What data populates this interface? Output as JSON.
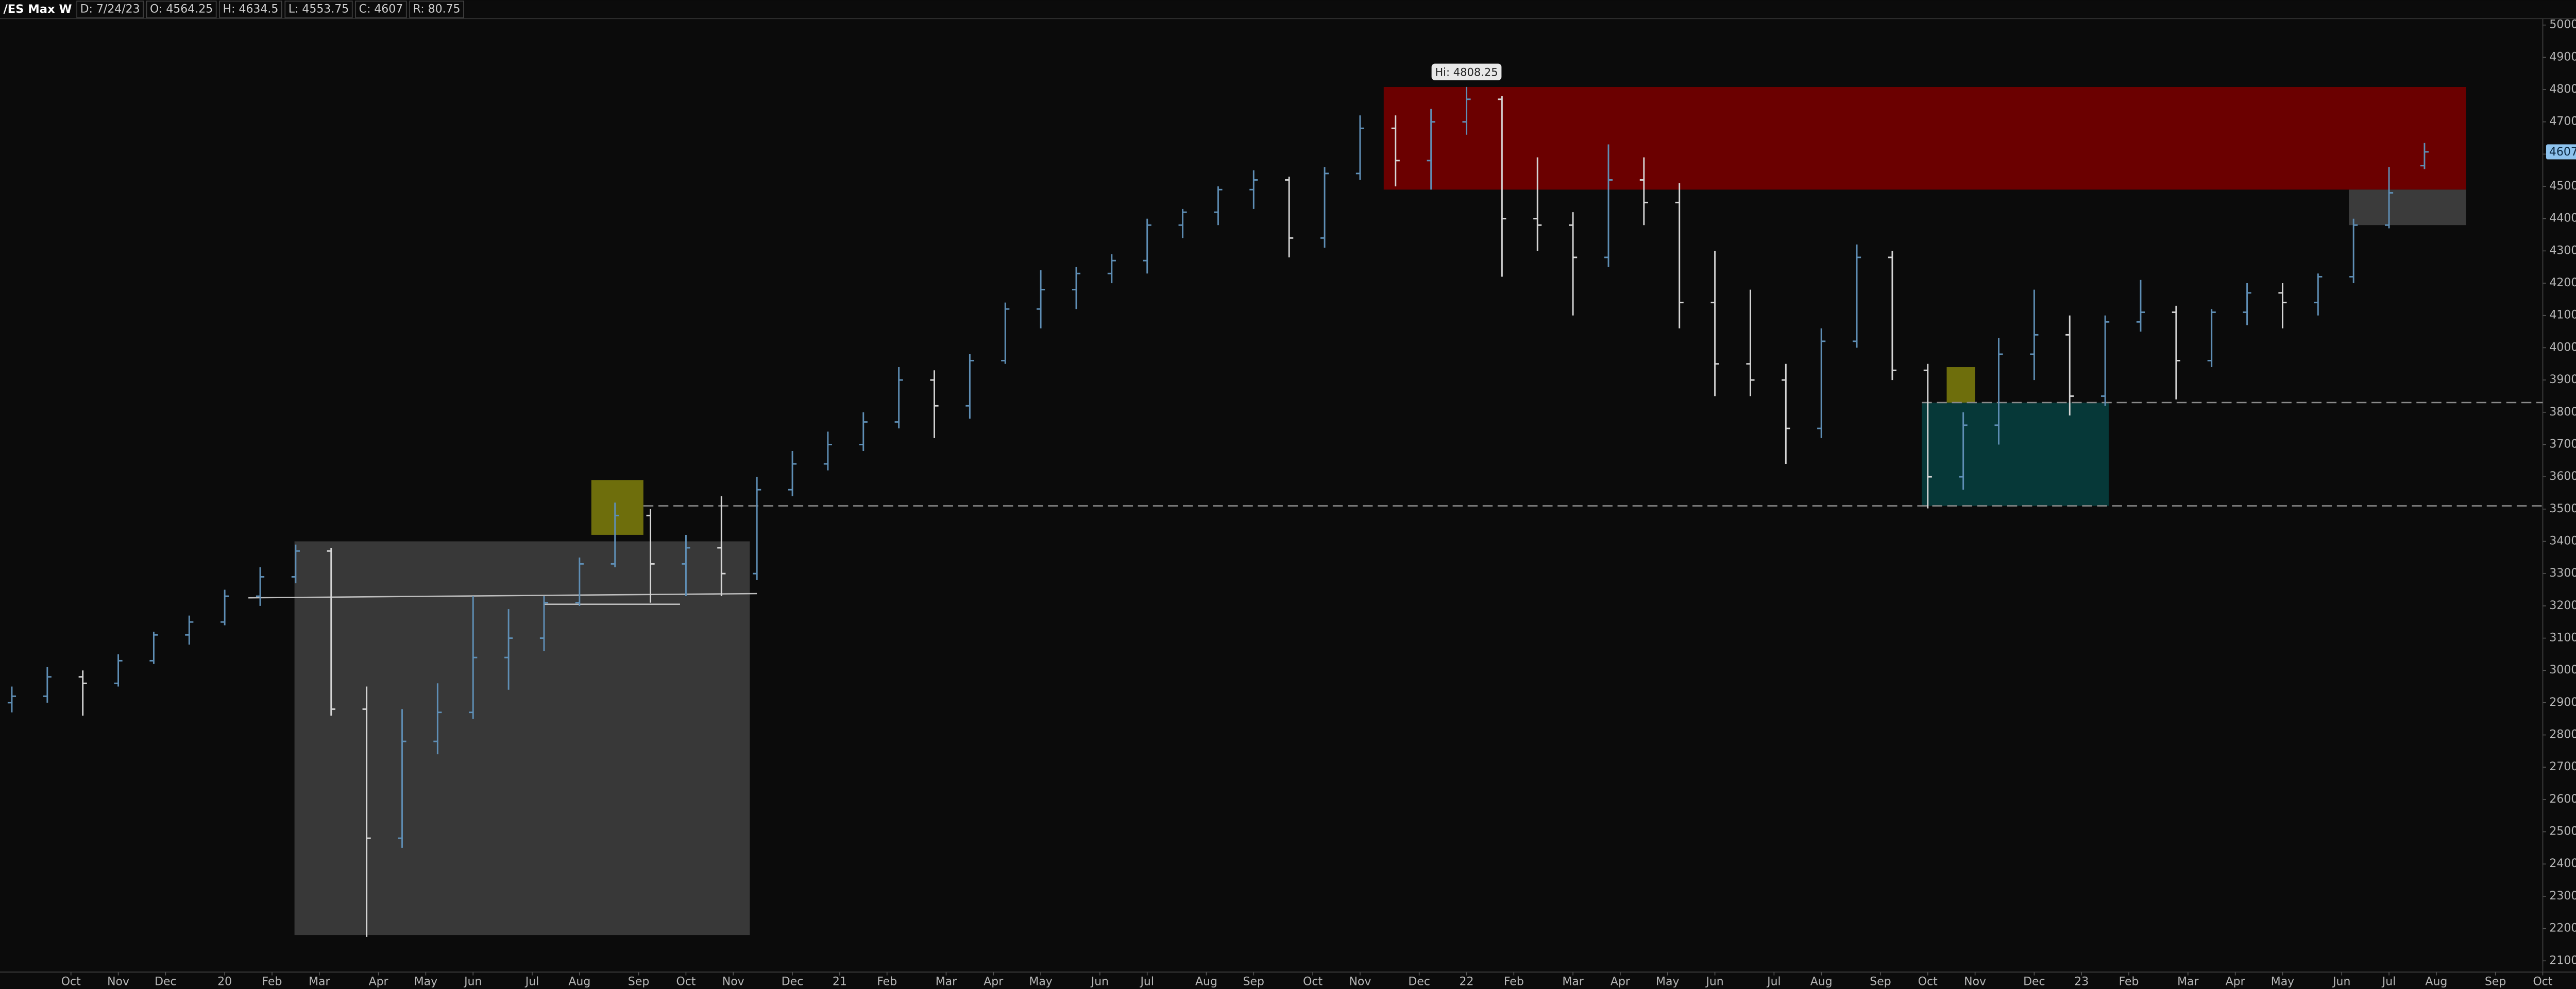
{
  "chart_data": {
    "type": "ohlc",
    "title": "/ES Max W",
    "header_fields": [
      "D: 7/24/23",
      "O: 4564.25",
      "H: 4634.5",
      "L: 4553.75",
      "C: 4607",
      "R: 80.75"
    ],
    "hi_label": "Hi: 4808.25",
    "last_price": 4607,
    "up_color": "#5f8fb6",
    "down_color": "#d6d6d6",
    "xlim": [
      0,
      215
    ],
    "ylim": [
      2060,
      5020
    ],
    "xticks": [
      {
        "value": 6,
        "label": "Oct"
      },
      {
        "value": 10,
        "label": "Nov"
      },
      {
        "value": 14,
        "label": "Dec"
      },
      {
        "value": 19,
        "label": "20"
      },
      {
        "value": 23,
        "label": "Feb"
      },
      {
        "value": 27,
        "label": "Mar"
      },
      {
        "value": 32,
        "label": "Apr"
      },
      {
        "value": 36,
        "label": "May"
      },
      {
        "value": 40,
        "label": "Jun"
      },
      {
        "value": 45,
        "label": "Jul"
      },
      {
        "value": 49,
        "label": "Aug"
      },
      {
        "value": 54,
        "label": "Sep"
      },
      {
        "value": 58,
        "label": "Oct"
      },
      {
        "value": 62,
        "label": "Nov"
      },
      {
        "value": 67,
        "label": "Dec"
      },
      {
        "value": 71,
        "label": "21"
      },
      {
        "value": 75,
        "label": "Feb"
      },
      {
        "value": 80,
        "label": "Mar"
      },
      {
        "value": 84,
        "label": "Apr"
      },
      {
        "value": 88,
        "label": "May"
      },
      {
        "value": 93,
        "label": "Jun"
      },
      {
        "value": 97,
        "label": "Jul"
      },
      {
        "value": 102,
        "label": "Aug"
      },
      {
        "value": 106,
        "label": "Sep"
      },
      {
        "value": 111,
        "label": "Oct"
      },
      {
        "value": 115,
        "label": "Nov"
      },
      {
        "value": 120,
        "label": "Dec"
      },
      {
        "value": 124,
        "label": "22"
      },
      {
        "value": 128,
        "label": "Feb"
      },
      {
        "value": 133,
        "label": "Mar"
      },
      {
        "value": 137,
        "label": "Apr"
      },
      {
        "value": 141,
        "label": "May"
      },
      {
        "value": 145,
        "label": "Jun"
      },
      {
        "value": 150,
        "label": "Jul"
      },
      {
        "value": 154,
        "label": "Aug"
      },
      {
        "value": 159,
        "label": "Sep"
      },
      {
        "value": 163,
        "label": "Oct"
      },
      {
        "value": 167,
        "label": "Nov"
      },
      {
        "value": 172,
        "label": "Dec"
      },
      {
        "value": 176,
        "label": "23"
      },
      {
        "value": 180,
        "label": "Feb"
      },
      {
        "value": 185,
        "label": "Mar"
      },
      {
        "value": 189,
        "label": "Apr"
      },
      {
        "value": 193,
        "label": "May"
      },
      {
        "value": 198,
        "label": "Jun"
      },
      {
        "value": 202,
        "label": "Jul"
      },
      {
        "value": 206,
        "label": "Aug"
      },
      {
        "value": 211,
        "label": "Sep"
      },
      {
        "value": 215,
        "label": "Oct"
      }
    ],
    "yticks": [
      2100,
      2200,
      2300,
      2400,
      2500,
      2600,
      2700,
      2800,
      2900,
      3000,
      3100,
      3200,
      3300,
      3400,
      3500,
      3600,
      3700,
      3800,
      3900,
      4000,
      4100,
      4200,
      4300,
      4400,
      4500,
      4600,
      4700,
      4800,
      4900,
      5000
    ],
    "x": [
      1,
      4,
      7,
      10,
      13,
      16,
      19,
      22,
      25,
      28,
      31,
      34,
      37,
      40,
      43,
      46,
      49,
      52,
      55,
      58,
      61,
      64,
      67,
      70,
      73,
      76,
      79,
      82,
      85,
      88,
      91,
      94,
      97,
      100,
      103,
      106,
      109,
      112,
      115,
      118,
      121,
      124,
      127,
      130,
      133,
      136,
      139,
      142,
      145,
      148,
      151,
      154,
      157,
      160,
      163,
      166,
      169,
      172,
      175,
      178,
      181,
      184,
      187,
      190,
      193,
      196,
      199,
      202,
      205
    ],
    "open": [
      2900,
      2920,
      2980,
      2960,
      3030,
      3110,
      3150,
      3230,
      3290,
      3370,
      2880,
      2480,
      2780,
      2870,
      3040,
      3100,
      3210,
      3330,
      3480,
      3330,
      3380,
      3300,
      3560,
      3640,
      3700,
      3770,
      3900,
      3820,
      3960,
      4120,
      4180,
      4230,
      4270,
      4380,
      4420,
      4490,
      4520,
      4340,
      4540,
      4680,
      4580,
      4700,
      4770,
      4400,
      4380,
      4280,
      4520,
      4450,
      4140,
      3950,
      3900,
      3750,
      4020,
      4280,
      3930,
      3600,
      3760,
      3980,
      4040,
      3850,
      4080,
      4110,
      3960,
      4110,
      4170,
      4140,
      4220,
      4380,
      4564.25
    ],
    "high": [
      2950,
      3010,
      3000,
      3050,
      3120,
      3170,
      3250,
      3320,
      3390,
      3380,
      2950,
      2880,
      2960,
      3230,
      3190,
      3230,
      3350,
      3520,
      3500,
      3420,
      3540,
      3600,
      3680,
      3740,
      3800,
      3940,
      3930,
      3980,
      4140,
      4240,
      4250,
      4290,
      4400,
      4430,
      4500,
      4550,
      4530,
      4560,
      4720,
      4720,
      4740,
      4808.25,
      4780,
      4590,
      4420,
      4630,
      4590,
      4510,
      4300,
      4180,
      3950,
      4060,
      4320,
      4300,
      3950,
      3800,
      4030,
      4180,
      4100,
      4100,
      4210,
      4130,
      4120,
      4200,
      4200,
      4230,
      4400,
      4560,
      4634.5
    ],
    "low": [
      2870,
      2900,
      2860,
      2950,
      3020,
      3080,
      3140,
      3200,
      3270,
      2860,
      2174,
      2450,
      2740,
      2850,
      2940,
      3060,
      3200,
      3320,
      3210,
      3230,
      3230,
      3280,
      3540,
      3620,
      3680,
      3750,
      3720,
      3780,
      3950,
      4060,
      4120,
      4200,
      4230,
      4340,
      4380,
      4430,
      4280,
      4310,
      4520,
      4500,
      4490,
      4660,
      4220,
      4300,
      4100,
      4250,
      4380,
      4060,
      3850,
      3850,
      3640,
      3720,
      4000,
      3900,
      3502,
      3560,
      3700,
      3900,
      3790,
      3820,
      4050,
      3840,
      3940,
      4070,
      4060,
      4100,
      4200,
      4370,
      4553.75
    ],
    "close": [
      2920,
      2980,
      2960,
      3030,
      3110,
      3150,
      3230,
      3290,
      3370,
      2880,
      2480,
      2780,
      2870,
      3040,
      3100,
      3210,
      3330,
      3480,
      3330,
      3380,
      3300,
      3560,
      3640,
      3700,
      3770,
      3900,
      3820,
      3960,
      4120,
      4180,
      4230,
      4270,
      4380,
      4420,
      4490,
      4520,
      4340,
      4540,
      4680,
      4580,
      4700,
      4770,
      4400,
      4380,
      4280,
      4520,
      4450,
      4140,
      3950,
      3900,
      3750,
      4020,
      4280,
      3930,
      3600,
      3760,
      3980,
      4040,
      3850,
      4080,
      4110,
      3960,
      4110,
      4170,
      4140,
      4220,
      4380,
      4480,
      4607
    ],
    "zones": [
      {
        "x": [
          117,
          208.5
        ],
        "y": [
          4490,
          4808
        ],
        "color": "#6b0000"
      },
      {
        "x": [
          198.6,
          208.5
        ],
        "y": [
          4380,
          4490
        ],
        "color": "#3b3b3b"
      },
      {
        "x": [
          24.9,
          63.4
        ],
        "y": [
          2180,
          3400
        ],
        "color": "#383838"
      },
      {
        "x": [
          50,
          54.4
        ],
        "y": [
          3420,
          3590
        ],
        "color": "#6e6e0c"
      },
      {
        "x": [
          162.5,
          178.3
        ],
        "y": [
          3510,
          3830
        ],
        "color": "#063838"
      },
      {
        "x": [
          164.6,
          167
        ],
        "y": [
          3830,
          3940
        ],
        "color": "#6e6e0c"
      }
    ],
    "lines": [
      {
        "x": [
          21,
          64
        ],
        "y": [
          3225,
          3238
        ],
        "color": "#bdbdbd",
        "dash": false
      },
      {
        "x": [
          46,
          57.5
        ],
        "y": [
          3205,
          3205
        ],
        "color": "#bdbdbd",
        "dash": false
      },
      {
        "x": [
          54.4,
          215
        ],
        "y": [
          3510,
          3510
        ],
        "color": "#8a8a8a",
        "dash": true
      },
      {
        "x": [
          162.5,
          215
        ],
        "y": [
          3830,
          3830
        ],
        "color": "#8a8a8a",
        "dash": true
      }
    ]
  }
}
